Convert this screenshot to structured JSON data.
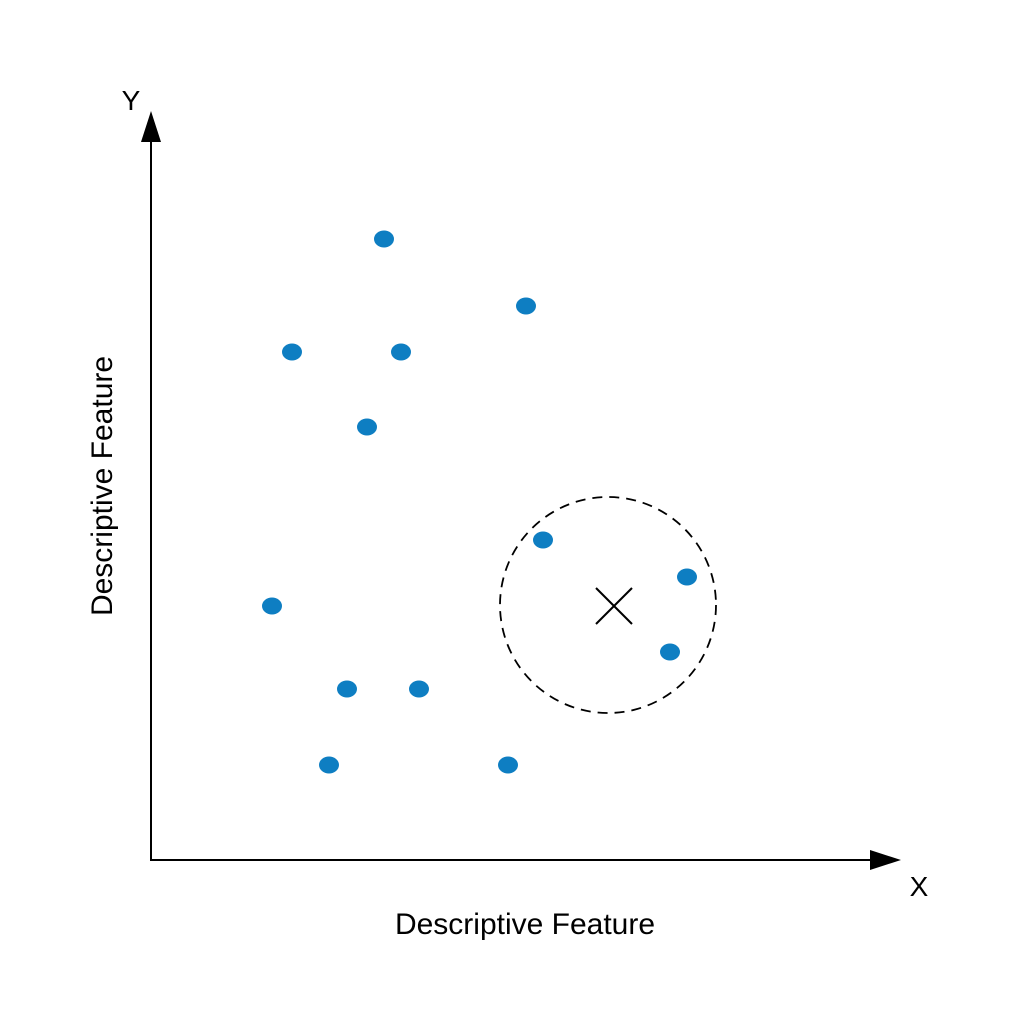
{
  "axes": {
    "x_letter": "X",
    "y_letter": "Y",
    "x_label": "Descriptive Feature",
    "y_label": "Descriptive Feature"
  },
  "colors": {
    "point": "#0e7ec2",
    "axis": "#000000",
    "circle": "#000000",
    "query": "#000000"
  },
  "icons": {
    "query": "x-cross-icon",
    "neighborhood": "dashed-circle"
  }
}
